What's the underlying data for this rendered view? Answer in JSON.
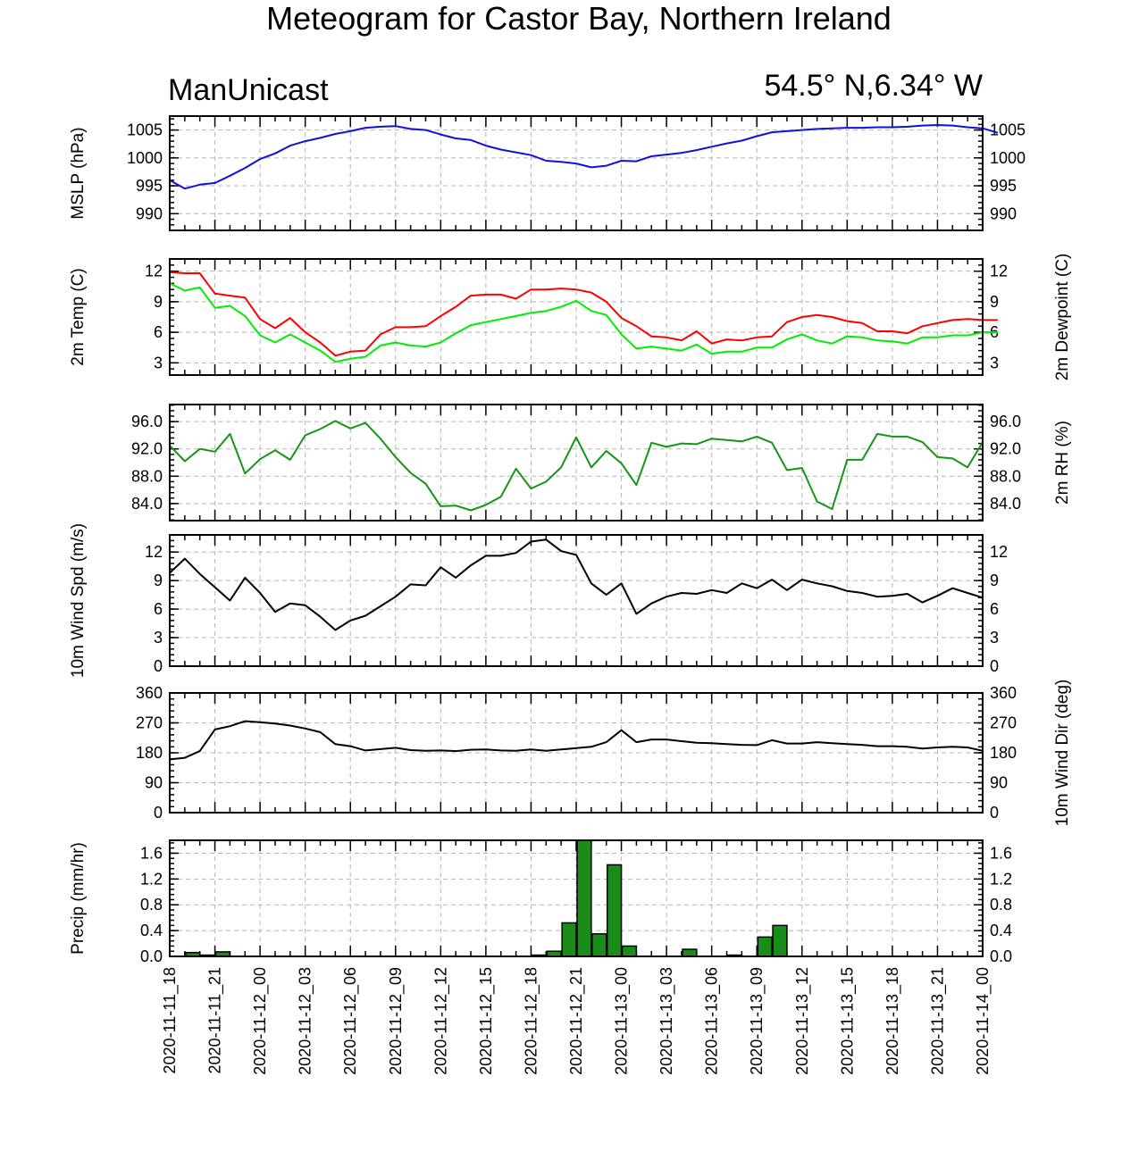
{
  "title": "Meteogram for Castor Bay, Northern Ireland",
  "source_label": "ManUnicast",
  "location_label": "54.5° N,6.34° W",
  "colors": {
    "mslp": "#1010e0",
    "temp": "#ff0000",
    "dewpoint": "#00ee00",
    "rh": "#149614",
    "wind": "#000000",
    "precip_fill": "#1a8c1a"
  },
  "chart_data": {
    "type": "line",
    "x_start": "2020-11-11 18:00",
    "x_step_hours": 1,
    "x_ticks": [
      "2020-11-11_18",
      "2020-11-11_21",
      "2020-11-12_00",
      "2020-11-12_03",
      "2020-11-12_06",
      "2020-11-12_09",
      "2020-11-12_12",
      "2020-11-12_15",
      "2020-11-12_18",
      "2020-11-12_21",
      "2020-11-13_00",
      "2020-11-13_03",
      "2020-11-13_06",
      "2020-11-13_09",
      "2020-11-13_12",
      "2020-11-13_15",
      "2020-11-13_18",
      "2020-11-13_21",
      "2020-11-14_00"
    ],
    "panels": [
      {
        "id": "mslp",
        "type": "line",
        "ylabel_left": "MSLP (hPa)",
        "ylabel_right": "",
        "ylim": [
          987,
          1007.5
        ],
        "yticks": [
          990,
          995,
          1000,
          1005
        ],
        "ytick_labels": [
          "990",
          "995",
          "1000",
          "1005"
        ],
        "series": [
          {
            "color": "#1010e0",
            "values": [
              996.0,
              994.5,
              995.2,
              995.5,
              996.8,
              998.2,
              999.8,
              1000.8,
              1002.2,
              1003.0,
              1003.6,
              1004.3,
              1004.8,
              1005.4,
              1005.6,
              1005.7,
              1005.2,
              1005.0,
              1004.2,
              1003.5,
              1003.2,
              1002.2,
              1001.5,
              1001.0,
              1000.5,
              999.5,
              999.3,
              999.0,
              998.3,
              998.6,
              999.5,
              999.4,
              1000.3,
              1000.6,
              1000.9,
              1001.4,
              1002.0,
              1002.6,
              1003.1,
              1003.9,
              1004.6,
              1004.8,
              1005.0,
              1005.2,
              1005.3,
              1005.4,
              1005.4,
              1005.5,
              1005.5,
              1005.6,
              1005.8,
              1005.9,
              1005.8,
              1005.5,
              1005.3,
              1004.5
            ]
          }
        ]
      },
      {
        "id": "temp",
        "type": "line",
        "ylabel_left": "2m Temp (C)",
        "ylabel_right": "2m Dewpoint (C)",
        "ylim": [
          1.8,
          13.2
        ],
        "yticks": [
          3,
          6,
          9,
          12
        ],
        "ytick_labels": [
          "3",
          "6",
          "9",
          "12"
        ],
        "series": [
          {
            "color": "#ff0000",
            "values": [
              11.9,
              11.8,
              11.8,
              9.8,
              9.6,
              9.4,
              7.3,
              6.4,
              7.4,
              6.0,
              5.0,
              3.7,
              4.1,
              4.2,
              5.8,
              6.5,
              6.5,
              6.6,
              7.6,
              8.5,
              9.6,
              9.7,
              9.7,
              9.3,
              10.2,
              10.2,
              10.3,
              10.2,
              9.9,
              9.0,
              7.4,
              6.6,
              5.6,
              5.5,
              5.2,
              6.1,
              4.9,
              5.3,
              5.2,
              5.5,
              5.6,
              7.0,
              7.5,
              7.7,
              7.5,
              7.1,
              6.9,
              6.1,
              6.1,
              5.9,
              6.6,
              6.9,
              7.2,
              7.3,
              7.2,
              7.2
            ]
          },
          {
            "color": "#00ee00",
            "values": [
              10.8,
              10.1,
              10.4,
              8.4,
              8.6,
              7.6,
              5.7,
              5.0,
              5.8,
              5.0,
              4.2,
              3.1,
              3.4,
              3.6,
              4.7,
              5.0,
              4.7,
              4.6,
              5.0,
              5.9,
              6.7,
              7.0,
              7.3,
              7.6,
              7.9,
              8.1,
              8.5,
              9.1,
              8.1,
              7.7,
              5.8,
              4.4,
              4.6,
              4.4,
              4.2,
              4.8,
              3.9,
              4.1,
              4.1,
              4.5,
              4.5,
              5.3,
              5.8,
              5.2,
              4.9,
              5.6,
              5.5,
              5.2,
              5.1,
              4.9,
              5.5,
              5.5,
              5.7,
              5.7,
              6.0,
              6.0
            ]
          }
        ]
      },
      {
        "id": "rh",
        "type": "line",
        "ylabel_left": "",
        "ylabel_right": "2m RH (%)",
        "ylim": [
          81.5,
          98.5
        ],
        "yticks": [
          84,
          88,
          92,
          96
        ],
        "ytick_labels": [
          "84.0",
          "88.0",
          "92.0",
          "96.0"
        ],
        "series": [
          {
            "color": "#149614",
            "values": [
              92.5,
              90.2,
              92.0,
              91.6,
              94.2,
              88.4,
              90.5,
              91.8,
              90.4,
              94.0,
              94.9,
              96.1,
              95.0,
              95.8,
              93.5,
              90.8,
              88.5,
              86.9,
              83.6,
              83.7,
              83.0,
              83.8,
              85.0,
              89.1,
              86.2,
              87.2,
              89.3,
              93.7,
              89.3,
              91.7,
              89.9,
              86.7,
              92.9,
              92.3,
              92.8,
              92.7,
              93.5,
              93.3,
              93.1,
              93.8,
              92.9,
              88.9,
              89.2,
              84.3,
              83.2,
              90.4,
              90.4,
              94.2,
              93.8,
              93.8,
              93.0,
              90.8,
              90.6,
              89.3,
              93.0
            ]
          }
        ]
      },
      {
        "id": "wind_speed",
        "type": "line",
        "ylabel_left": "10m Wind Spd (m/s)",
        "ylabel_right": "",
        "ylim": [
          0,
          13.8
        ],
        "yticks": [
          0,
          3,
          6,
          9,
          12
        ],
        "ytick_labels": [
          "0",
          "3",
          "6",
          "9",
          "12"
        ],
        "series": [
          {
            "color": "#000000",
            "values": [
              9.8,
              11.3,
              9.7,
              8.3,
              6.9,
              9.3,
              7.7,
              5.7,
              6.6,
              6.4,
              5.2,
              3.8,
              4.8,
              5.3,
              6.3,
              7.3,
              8.6,
              8.5,
              10.4,
              9.3,
              10.6,
              11.6,
              11.6,
              11.9,
              13.1,
              13.3,
              12.1,
              11.7,
              8.7,
              7.5,
              8.7,
              5.5,
              6.6,
              7.3,
              7.7,
              7.6,
              8.0,
              7.7,
              8.7,
              8.2,
              9.1,
              8.0,
              9.1,
              8.7,
              8.4,
              7.9,
              7.7,
              7.3,
              7.4,
              7.6,
              6.7,
              7.4,
              8.2,
              7.7,
              7.2
            ]
          }
        ]
      },
      {
        "id": "wind_dir",
        "type": "line",
        "ylabel_left": "",
        "ylabel_right": "10m Wind Dir (deg)",
        "ylim": [
          0,
          360
        ],
        "yticks": [
          0,
          90,
          180,
          270,
          360
        ],
        "ytick_labels": [
          "0",
          "90",
          "180",
          "270",
          "360"
        ],
        "series": [
          {
            "color": "#000000",
            "values": [
              160,
              165,
              185,
              250,
              260,
              275,
              272,
              268,
              262,
              253,
              242,
              206,
              200,
              187,
              191,
              195,
              188,
              186,
              187,
              185,
              189,
              190,
              187,
              186,
              190,
              186,
              190,
              194,
              198,
              212,
              248,
              212,
              220,
              220,
              215,
              210,
              209,
              206,
              204,
              203,
              218,
              208,
              208,
              212,
              209,
              206,
              204,
              200,
              200,
              198,
              193,
              196,
              198,
              196,
              186
            ]
          }
        ]
      },
      {
        "id": "precip",
        "type": "bar",
        "ylabel_left": "Precip (mm/hr)",
        "ylabel_right": "",
        "ylim": [
          0,
          1.8
        ],
        "yticks": [
          0,
          0.4,
          0.8,
          1.2,
          1.6
        ],
        "ytick_labels": [
          "0.0",
          "0.4",
          "0.8",
          "1.2",
          "1.6"
        ],
        "series": [
          {
            "color": "#1a8c1a",
            "values": [
              0,
              0.06,
              0.02,
              0.07,
              0,
              0,
              0,
              0,
              0,
              0,
              0,
              0,
              0,
              0,
              0,
              0,
              0,
              0,
              0,
              0,
              0,
              0,
              0,
              0,
              0.02,
              0.08,
              0.52,
              1.8,
              0.35,
              1.42,
              0.16,
              0,
              0,
              0,
              0.11,
              0,
              0,
              0.02,
              0,
              0.3,
              0.48,
              0,
              0,
              0,
              0,
              0,
              0,
              0,
              0,
              0,
              0,
              0,
              0,
              0,
              0
            ]
          }
        ]
      }
    ]
  }
}
